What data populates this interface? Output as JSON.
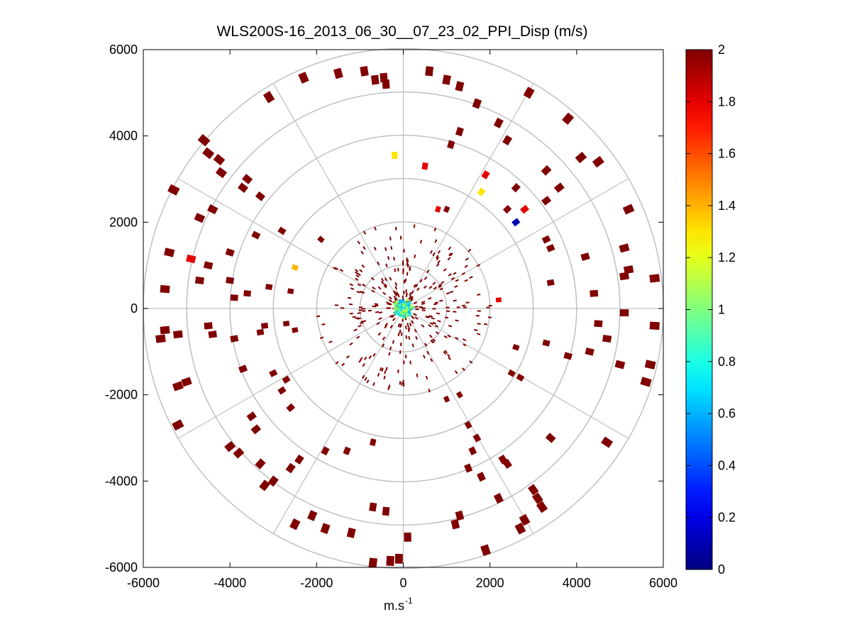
{
  "chart_data": {
    "type": "polar-scatter",
    "title": "WLS200S-16_2013_06_30__07_23_02_PPI_Disp (m/s)",
    "xlabel": "m.s",
    "xlabel_superscript": "-1",
    "ylabel": "",
    "xlim": [
      -6000,
      6000
    ],
    "ylim": [
      -6000,
      6000
    ],
    "xticks": [
      -6000,
      -4000,
      -2000,
      0,
      2000,
      4000,
      6000
    ],
    "yticks": [
      6000,
      4000,
      2000,
      0,
      -2000,
      -4000,
      -6000
    ],
    "xtick_labels": [
      "-6000",
      "-4000",
      "-2000",
      "0",
      "2000",
      "4000",
      "6000"
    ],
    "ytick_labels": [
      "6000",
      "4000",
      "2000",
      "0",
      "-2000",
      "-4000",
      "-6000"
    ],
    "range_rings": [
      1000,
      2000,
      3000,
      4000,
      5000,
      6000
    ],
    "spokes_deg": [
      0,
      30,
      60,
      90,
      120,
      150,
      180,
      210,
      240,
      270,
      300,
      330
    ],
    "grid": true,
    "colorbar": {
      "colormap": "jet",
      "range": [
        0,
        2
      ],
      "ticks": [
        0,
        0.2,
        0.4,
        0.6,
        0.8,
        1,
        1.2,
        1.4,
        1.6,
        1.8,
        2
      ],
      "tick_labels": [
        "0",
        "0.2",
        "0.4",
        "0.6",
        "0.8",
        "1",
        "1.2",
        "1.4",
        "1.6",
        "1.8",
        "2"
      ]
    },
    "points": [
      {
        "x": -400,
        "y": 5200,
        "v": 2
      },
      {
        "x": -450,
        "y": 5350,
        "v": 2
      },
      {
        "x": -650,
        "y": 5300,
        "v": 2
      },
      {
        "x": -900,
        "y": 5500,
        "v": 2
      },
      {
        "x": -1500,
        "y": 5450,
        "v": 2
      },
      {
        "x": -2300,
        "y": 5350,
        "v": 2
      },
      {
        "x": -3100,
        "y": 4900,
        "v": 2
      },
      {
        "x": -4600,
        "y": 3900,
        "v": 2
      },
      {
        "x": -4500,
        "y": 3600,
        "v": 2
      },
      {
        "x": -4250,
        "y": 3450,
        "v": 2
      },
      {
        "x": -4200,
        "y": 3150,
        "v": 2
      },
      {
        "x": -3600,
        "y": 3000,
        "v": 2
      },
      {
        "x": -3700,
        "y": 2800,
        "v": 2
      },
      {
        "x": -3300,
        "y": 2600,
        "v": 2
      },
      {
        "x": -4700,
        "y": 2100,
        "v": 2
      },
      {
        "x": -5300,
        "y": 2750,
        "v": 2
      },
      {
        "x": -4400,
        "y": 2300,
        "v": 2
      },
      {
        "x": -3400,
        "y": 1700,
        "v": 2
      },
      {
        "x": -2800,
        "y": 1800,
        "v": 2
      },
      {
        "x": -1900,
        "y": 1600,
        "v": 2
      },
      {
        "x": -5500,
        "y": 450,
        "v": 2
      },
      {
        "x": -5400,
        "y": 1300,
        "v": 2
      },
      {
        "x": -4000,
        "y": 1300,
        "v": 2
      },
      {
        "x": -4500,
        "y": 1000,
        "v": 2
      },
      {
        "x": -4700,
        "y": 650,
        "v": 2
      },
      {
        "x": -4000,
        "y": 650,
        "v": 2
      },
      {
        "x": -3600,
        "y": 350,
        "v": 2
      },
      {
        "x": -3900,
        "y": 250,
        "v": 2
      },
      {
        "x": -3100,
        "y": 500,
        "v": 2
      },
      {
        "x": -2600,
        "y": 400,
        "v": 2
      },
      {
        "x": -5600,
        "y": -700,
        "v": 2
      },
      {
        "x": -5500,
        "y": -500,
        "v": 2
      },
      {
        "x": -5200,
        "y": -600,
        "v": 2
      },
      {
        "x": -4500,
        "y": -400,
        "v": 2
      },
      {
        "x": -4400,
        "y": -600,
        "v": 2
      },
      {
        "x": -3900,
        "y": -700,
        "v": 2
      },
      {
        "x": -3300,
        "y": -550,
        "v": 2
      },
      {
        "x": -3200,
        "y": -400,
        "v": 2
      },
      {
        "x": -2700,
        "y": -350,
        "v": 2
      },
      {
        "x": -2500,
        "y": -500,
        "v": 2
      },
      {
        "x": -5200,
        "y": -1800,
        "v": 2
      },
      {
        "x": -5000,
        "y": -1700,
        "v": 2
      },
      {
        "x": -3700,
        "y": -1400,
        "v": 2
      },
      {
        "x": -3000,
        "y": -1500,
        "v": 2
      },
      {
        "x": -2800,
        "y": -1900,
        "v": 2
      },
      {
        "x": -2700,
        "y": -1650,
        "v": 2
      },
      {
        "x": -5200,
        "y": -2700,
        "v": 2
      },
      {
        "x": -3500,
        "y": -2500,
        "v": 2
      },
      {
        "x": -3400,
        "y": -2800,
        "v": 2
      },
      {
        "x": -2600,
        "y": -2300,
        "v": 2
      },
      {
        "x": -4000,
        "y": -3200,
        "v": 2
      },
      {
        "x": -3800,
        "y": -3350,
        "v": 2
      },
      {
        "x": -3300,
        "y": -3600,
        "v": 2
      },
      {
        "x": -3200,
        "y": -4100,
        "v": 2
      },
      {
        "x": -3000,
        "y": -4000,
        "v": 2
      },
      {
        "x": -2600,
        "y": -3700,
        "v": 2
      },
      {
        "x": -2400,
        "y": -3500,
        "v": 2
      },
      {
        "x": -1800,
        "y": -3300,
        "v": 2
      },
      {
        "x": -1300,
        "y": -3300,
        "v": 2
      },
      {
        "x": -700,
        "y": -3100,
        "v": 2
      },
      {
        "x": -2500,
        "y": -5000,
        "v": 2
      },
      {
        "x": -2100,
        "y": -4800,
        "v": 2
      },
      {
        "x": -1800,
        "y": -5100,
        "v": 2
      },
      {
        "x": -1200,
        "y": -5200,
        "v": 2
      },
      {
        "x": -700,
        "y": -4600,
        "v": 2
      },
      {
        "x": -400,
        "y": -4700,
        "v": 2
      },
      {
        "x": -700,
        "y": -5900,
        "v": 2
      },
      {
        "x": -300,
        "y": -5850,
        "v": 2
      },
      {
        "x": -100,
        "y": -5800,
        "v": 2
      },
      {
        "x": 600,
        "y": 5500,
        "v": 2
      },
      {
        "x": 1000,
        "y": 5300,
        "v": 2
      },
      {
        "x": 1300,
        "y": 5150,
        "v": 2
      },
      {
        "x": 1700,
        "y": 4750,
        "v": 2
      },
      {
        "x": 2900,
        "y": 5000,
        "v": 2
      },
      {
        "x": 2200,
        "y": 4300,
        "v": 2
      },
      {
        "x": 1300,
        "y": 4100,
        "v": 2
      },
      {
        "x": 1100,
        "y": 3800,
        "v": 2
      },
      {
        "x": 2400,
        "y": 3900,
        "v": 2
      },
      {
        "x": 3800,
        "y": 4400,
        "v": 2
      },
      {
        "x": 4100,
        "y": 3500,
        "v": 2
      },
      {
        "x": 4500,
        "y": 3400,
        "v": 2
      },
      {
        "x": 3300,
        "y": 3200,
        "v": 2
      },
      {
        "x": 2600,
        "y": 2800,
        "v": 2
      },
      {
        "x": 3600,
        "y": 2800,
        "v": 2
      },
      {
        "x": 3300,
        "y": 2500,
        "v": 2
      },
      {
        "x": 2400,
        "y": 2300,
        "v": 2
      },
      {
        "x": 1000,
        "y": 2300,
        "v": 2
      },
      {
        "x": 5200,
        "y": 2300,
        "v": 2
      },
      {
        "x": 5100,
        "y": 1400,
        "v": 2
      },
      {
        "x": 5200,
        "y": 900,
        "v": 2
      },
      {
        "x": 5100,
        "y": 750,
        "v": 2
      },
      {
        "x": 4200,
        "y": 1200,
        "v": 2
      },
      {
        "x": 4400,
        "y": 350,
        "v": 2
      },
      {
        "x": 3400,
        "y": 1400,
        "v": 2
      },
      {
        "x": 3300,
        "y": 1600,
        "v": 2
      },
      {
        "x": 3400,
        "y": 600,
        "v": 2
      },
      {
        "x": 5800,
        "y": 700,
        "v": 2
      },
      {
        "x": 5800,
        "y": -400,
        "v": 2
      },
      {
        "x": 5100,
        "y": -100,
        "v": 2
      },
      {
        "x": 4500,
        "y": -350,
        "v": 2
      },
      {
        "x": 4700,
        "y": -700,
        "v": 2
      },
      {
        "x": 4300,
        "y": -1000,
        "v": 2
      },
      {
        "x": 5000,
        "y": -1300,
        "v": 2
      },
      {
        "x": 5700,
        "y": -1300,
        "v": 2
      },
      {
        "x": 5600,
        "y": -1700,
        "v": 2
      },
      {
        "x": 3800,
        "y": -1100,
        "v": 2
      },
      {
        "x": 3300,
        "y": -800,
        "v": 2
      },
      {
        "x": 2700,
        "y": -1600,
        "v": 2
      },
      {
        "x": 2500,
        "y": -1500,
        "v": 2
      },
      {
        "x": 2600,
        "y": -900,
        "v": 2
      },
      {
        "x": 3400,
        "y": -3000,
        "v": 2
      },
      {
        "x": 4700,
        "y": -3100,
        "v": 2
      },
      {
        "x": 2300,
        "y": -3500,
        "v": 2
      },
      {
        "x": 2400,
        "y": -3600,
        "v": 2
      },
      {
        "x": 1600,
        "y": -3300,
        "v": 2
      },
      {
        "x": 1700,
        "y": -3000,
        "v": 2
      },
      {
        "x": 1500,
        "y": -2700,
        "v": 2
      },
      {
        "x": 1300,
        "y": -2000,
        "v": 2
      },
      {
        "x": 1000,
        "y": -2100,
        "v": 2
      },
      {
        "x": 1500,
        "y": -3700,
        "v": 2
      },
      {
        "x": 1800,
        "y": -3900,
        "v": 2
      },
      {
        "x": 2200,
        "y": -4400,
        "v": 2
      },
      {
        "x": 3000,
        "y": -4200,
        "v": 2
      },
      {
        "x": 3100,
        "y": -4400,
        "v": 2
      },
      {
        "x": 3200,
        "y": -4600,
        "v": 2
      },
      {
        "x": 2800,
        "y": -4900,
        "v": 2
      },
      {
        "x": 2700,
        "y": -5100,
        "v": 2
      },
      {
        "x": 1900,
        "y": -5600,
        "v": 2
      },
      {
        "x": 1200,
        "y": -5000,
        "v": 2
      },
      {
        "x": 1300,
        "y": -4800,
        "v": 2
      },
      {
        "x": 100,
        "y": -5300,
        "v": 2
      },
      {
        "x": -200,
        "y": 3550,
        "v": 1.3
      },
      {
        "x": 1800,
        "y": 2700,
        "v": 1.3
      },
      {
        "x": -2500,
        "y": 950,
        "v": 1.4
      },
      {
        "x": 500,
        "y": 3300,
        "v": 1.8
      },
      {
        "x": 1900,
        "y": 3100,
        "v": 1.8
      },
      {
        "x": 2800,
        "y": 2300,
        "v": 1.8
      },
      {
        "x": -4900,
        "y": 1150,
        "v": 1.8
      },
      {
        "x": 2200,
        "y": 200,
        "v": 1.8
      },
      {
        "x": 800,
        "y": 2300,
        "v": 1.8
      },
      {
        "x": 2600,
        "y": 2000,
        "v": 0.1
      }
    ]
  }
}
